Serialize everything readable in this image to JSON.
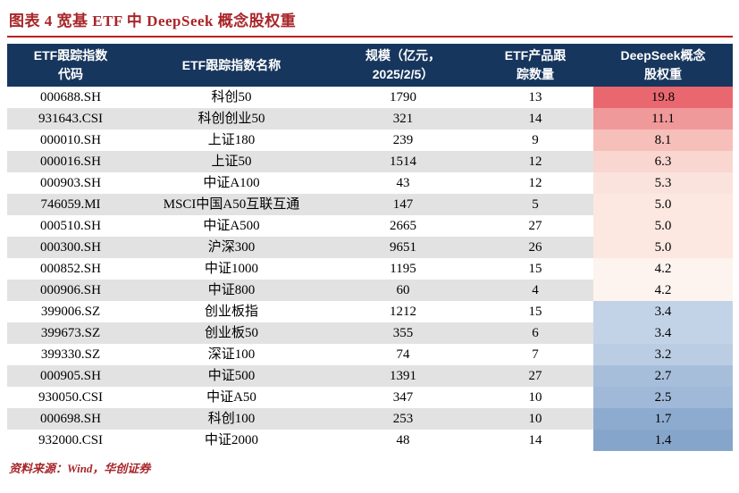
{
  "title": "图表 4  宽基 ETF 中 DeepSeek 概念股权重",
  "source": "资料来源：Wind，华创证券",
  "colors": {
    "title": "#a8262a",
    "rule": "#bb1f1f",
    "header_bg": "#17365d",
    "header_text": "#ffffff",
    "row_alt": "#e2e2e2",
    "heat_high": "#e9686f",
    "heat_low": "#86a5cb"
  },
  "table": {
    "headers": [
      "ETF跟踪指数\n代码",
      "ETF跟踪指数名称",
      "规模（亿元，\n2025/2/5）",
      "ETF产品跟\n踪数量",
      "DeepSeek概念\n股权重"
    ]
  },
  "chart_data": {
    "type": "table",
    "title": "宽基 ETF 中 DeepSeek 概念股权重",
    "columns": [
      "ETF跟踪指数代码",
      "ETF跟踪指数名称",
      "规模（亿元，2025/2/5）",
      "ETF产品跟踪数量",
      "DeepSeek概念股权重"
    ],
    "rows": [
      {
        "code": "000688.SH",
        "name": "科创50",
        "scale": 1790,
        "count": 13,
        "weight": "19.8",
        "heat": "#e9686f"
      },
      {
        "code": "931643.CSI",
        "name": "科创创业50",
        "scale": 321,
        "count": 14,
        "weight": "11.1",
        "heat": "#f0999a"
      },
      {
        "code": "000010.SH",
        "name": "上证180",
        "scale": 239,
        "count": 9,
        "weight": "8.1",
        "heat": "#f6bfba"
      },
      {
        "code": "000016.SH",
        "name": "上证50",
        "scale": 1514,
        "count": 12,
        "weight": "6.3",
        "heat": "#f9d6d0"
      },
      {
        "code": "000903.SH",
        "name": "中证A100",
        "scale": 43,
        "count": 12,
        "weight": "5.3",
        "heat": "#fbe3dd"
      },
      {
        "code": "746059.MI",
        "name": "MSCI中国A50互联互通",
        "scale": 147,
        "count": 5,
        "weight": "5.0",
        "heat": "#fce7e1"
      },
      {
        "code": "000510.SH",
        "name": "中证A500",
        "scale": 2665,
        "count": 27,
        "weight": "5.0",
        "heat": "#fce7e1"
      },
      {
        "code": "000300.SH",
        "name": "沪深300",
        "scale": 9651,
        "count": 26,
        "weight": "5.0",
        "heat": "#fce7e1"
      },
      {
        "code": "000852.SH",
        "name": "中证1000",
        "scale": 1195,
        "count": 15,
        "weight": "4.2",
        "heat": "#fdf3ef"
      },
      {
        "code": "000906.SH",
        "name": "中证800",
        "scale": 60,
        "count": 4,
        "weight": "4.2",
        "heat": "#fdf3ef"
      },
      {
        "code": "399006.SZ",
        "name": "创业板指",
        "scale": 1212,
        "count": 15,
        "weight": "3.4",
        "heat": "#c3d3e7"
      },
      {
        "code": "399673.SZ",
        "name": "创业板50",
        "scale": 355,
        "count": 6,
        "weight": "3.4",
        "heat": "#c3d3e7"
      },
      {
        "code": "399330.SZ",
        "name": "深证100",
        "scale": 74,
        "count": 7,
        "weight": "3.2",
        "heat": "#bbcde3"
      },
      {
        "code": "000905.SH",
        "name": "中证500",
        "scale": 1391,
        "count": 27,
        "weight": "2.7",
        "heat": "#a7bedb"
      },
      {
        "code": "930050.CSI",
        "name": "中证A50",
        "scale": 347,
        "count": 10,
        "weight": "2.5",
        "heat": "#a0b9d8"
      },
      {
        "code": "000698.SH",
        "name": "科创100",
        "scale": 253,
        "count": 10,
        "weight": "1.7",
        "heat": "#8dabcf"
      },
      {
        "code": "932000.CSI",
        "name": "中证2000",
        "scale": 48,
        "count": 14,
        "weight": "1.4",
        "heat": "#86a5cb"
      }
    ]
  }
}
